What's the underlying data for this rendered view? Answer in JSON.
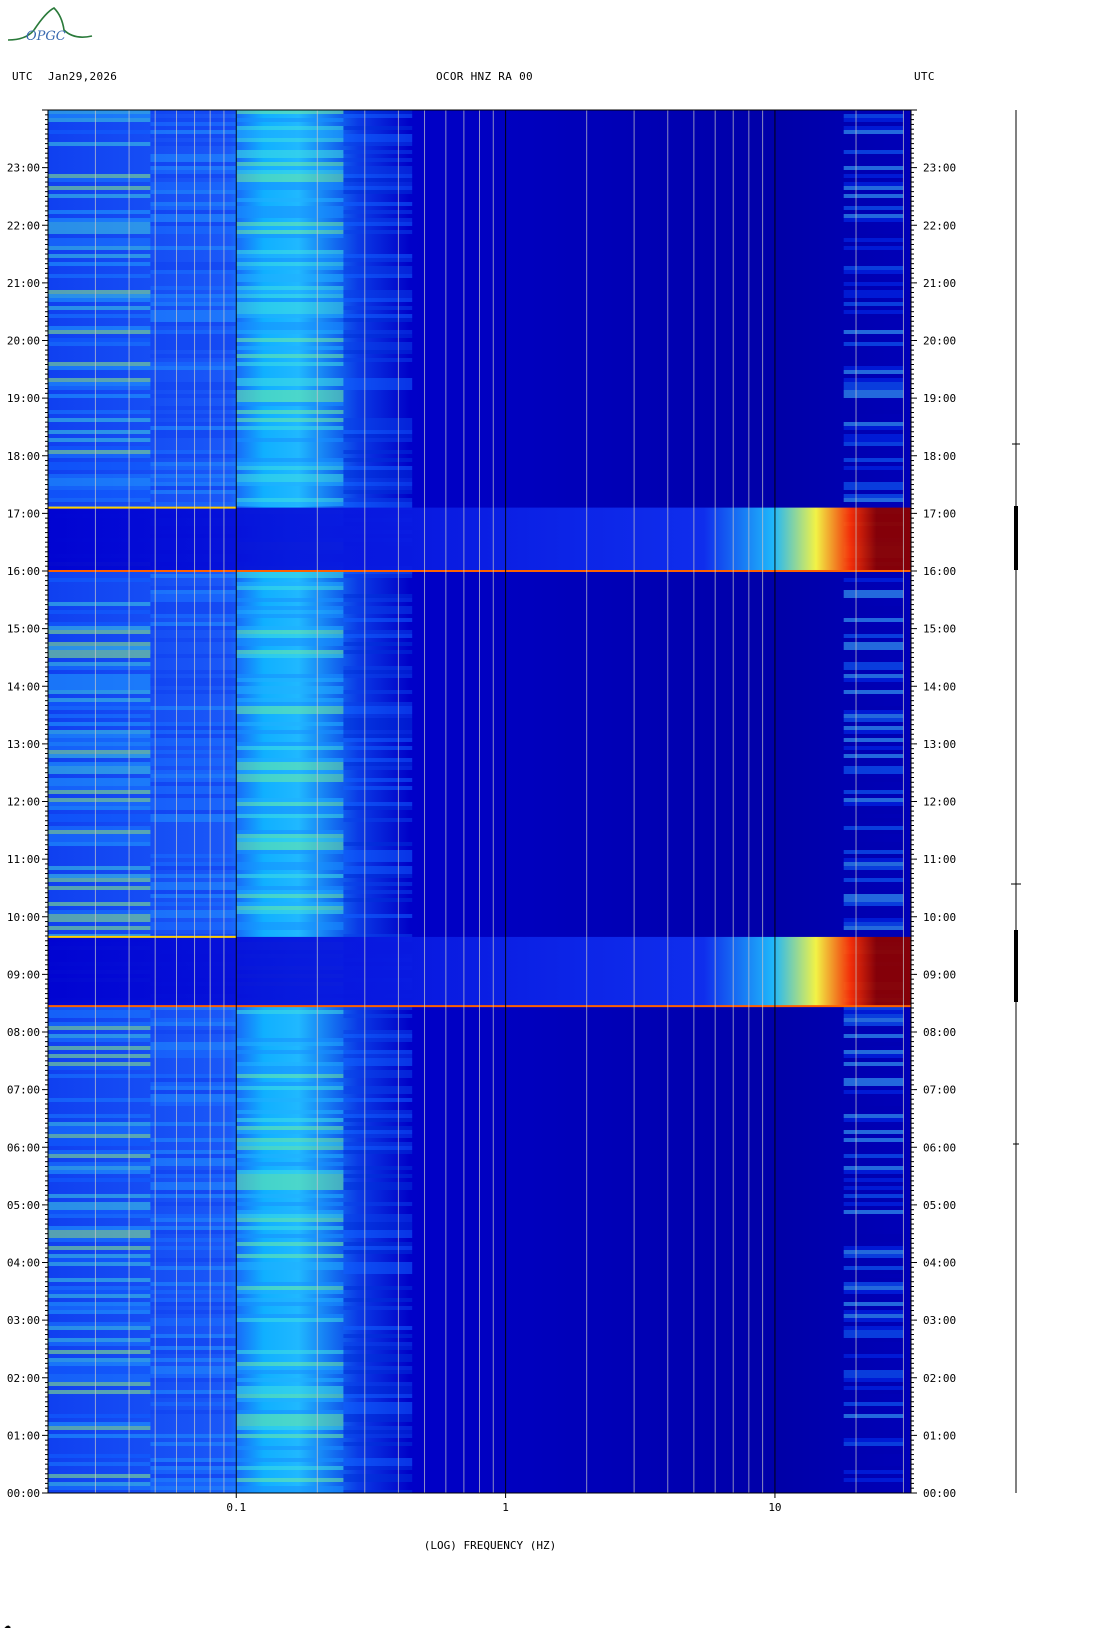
{
  "logo": {
    "text": "OPGC",
    "icon": "opgc-logo-icon",
    "color": "#2a7a3a"
  },
  "header": {
    "left_tz": "UTC",
    "date": "Jan29,2026",
    "station": "OCOR HNZ RA 00",
    "right_tz": "UTC"
  },
  "chart_data": {
    "type": "heatmap",
    "title": "OCOR HNZ RA 00",
    "xlabel": "(LOG) FREQUENCY (HZ)",
    "ylabel": "",
    "x_scale": "log",
    "xlim": [
      0.02,
      32
    ],
    "x_ticks": [
      {
        "value": 0.1,
        "label": "0.1"
      },
      {
        "value": 1,
        "label": "1"
      },
      {
        "value": 10,
        "label": "10"
      }
    ],
    "ylim_hours": [
      0,
      24
    ],
    "y_ticks": [
      "00:00",
      "01:00",
      "02:00",
      "03:00",
      "04:00",
      "05:00",
      "06:00",
      "07:00",
      "08:00",
      "09:00",
      "10:00",
      "11:00",
      "12:00",
      "13:00",
      "14:00",
      "15:00",
      "16:00",
      "17:00",
      "18:00",
      "19:00",
      "20:00",
      "21:00",
      "22:00",
      "23:00"
    ],
    "colormap": [
      "#00008b",
      "#0000ff",
      "#00b4ff",
      "#40ffc0",
      "#ffff00",
      "#ff8000",
      "#ff0000",
      "#8b0000"
    ],
    "events": [
      {
        "start_hour": 8.45,
        "end_hour": 9.65,
        "description": "broadband high-frequency energy"
      },
      {
        "start_hour": 16.0,
        "end_hour": 17.1,
        "description": "broadband high-frequency energy"
      }
    ],
    "grid": true
  },
  "footer": {
    "mark": "☁"
  }
}
